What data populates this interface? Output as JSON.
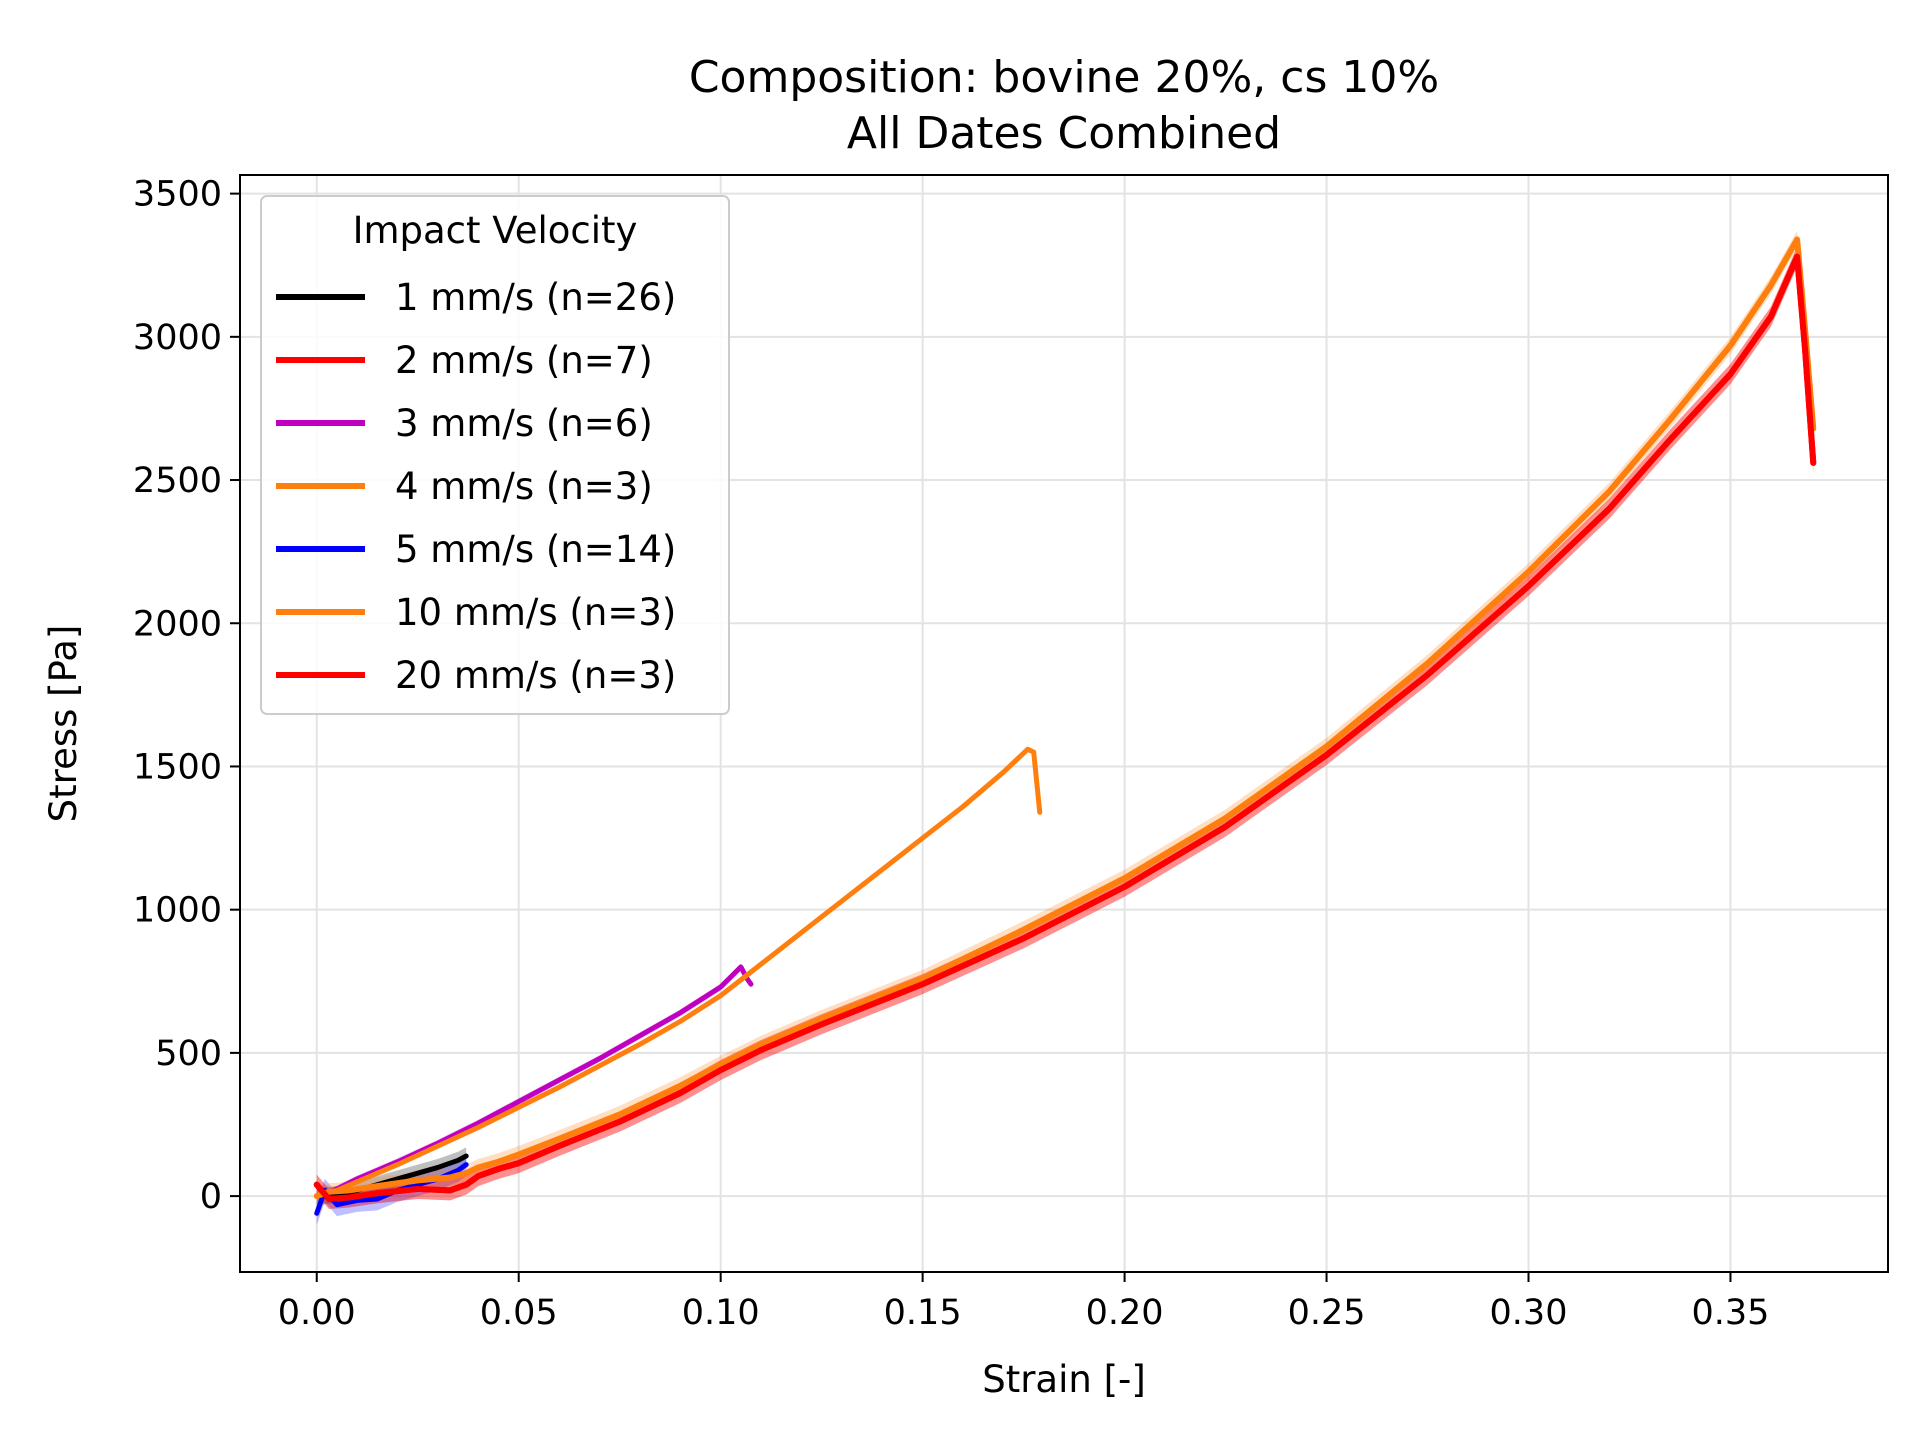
{
  "chart_data": {
    "type": "line",
    "title": "Composition: bovine 20%, cs 10%",
    "subtitle": "All Dates Combined",
    "xlabel": "Strain [-]",
    "ylabel": "Stress [Pa]",
    "xlim": [
      -0.019,
      0.389
    ],
    "ylim": [
      -265,
      3565
    ],
    "xticks": [
      0.0,
      0.05,
      0.1,
      0.15,
      0.2,
      0.25,
      0.3,
      0.35
    ],
    "xtick_labels": [
      "0.00",
      "0.05",
      "0.10",
      "0.15",
      "0.20",
      "0.25",
      "0.30",
      "0.35"
    ],
    "yticks": [
      0,
      500,
      1000,
      1500,
      2000,
      2500,
      3000,
      3500
    ],
    "ytick_labels": [
      "0",
      "500",
      "1000",
      "1500",
      "2000",
      "2500",
      "3000",
      "3500"
    ],
    "grid": true,
    "legend": {
      "title": "Impact Velocity",
      "placement": "upper-left"
    },
    "series": [
      {
        "name": "1 mm/s (n=26)",
        "color": "#000000",
        "band": 30,
        "x": [
          0.0,
          0.005,
          0.01,
          0.015,
          0.02,
          0.025,
          0.03,
          0.035,
          0.037
        ],
        "y": [
          0,
          5,
          20,
          40,
          60,
          80,
          100,
          125,
          140
        ]
      },
      {
        "name": "2 mm/s (n=7)",
        "color": "#ff0000",
        "band": 35,
        "x": [
          0.0,
          0.003,
          0.008,
          0.015,
          0.025,
          0.033,
          0.037,
          0.04,
          0.045,
          0.05,
          0.06,
          0.075,
          0.09,
          0.1,
          0.11,
          0.125,
          0.15,
          0.175,
          0.2,
          0.225,
          0.25,
          0.275,
          0.3,
          0.32,
          0.335,
          0.35,
          0.36,
          0.3665,
          0.3685,
          0.3705
        ],
        "y": [
          40,
          -10,
          -5,
          10,
          25,
          20,
          40,
          70,
          95,
          115,
          175,
          260,
          360,
          440,
          510,
          600,
          740,
          900,
          1080,
          1290,
          1540,
          1820,
          2130,
          2400,
          2640,
          2870,
          3070,
          3280,
          2950,
          2560
        ]
      },
      {
        "name": "3 mm/s (n=6)",
        "color": "#c000c0",
        "band": 12,
        "x": [
          0.0,
          0.005,
          0.01,
          0.02,
          0.03,
          0.04,
          0.05,
          0.06,
          0.07,
          0.08,
          0.09,
          0.1,
          0.105,
          0.1065,
          0.1075
        ],
        "y": [
          0,
          25,
          60,
          120,
          185,
          255,
          330,
          405,
          480,
          560,
          640,
          730,
          800,
          760,
          740
        ]
      },
      {
        "name": "4 mm/s (n=3)",
        "color": "#ff7f0e",
        "band": 10,
        "x": [
          0.0,
          0.005,
          0.01,
          0.02,
          0.03,
          0.04,
          0.05,
          0.06,
          0.07,
          0.08,
          0.09,
          0.1,
          0.11,
          0.12,
          0.13,
          0.14,
          0.15,
          0.16,
          0.17,
          0.176,
          0.1775,
          0.179
        ],
        "y": [
          0,
          20,
          50,
          110,
          175,
          240,
          310,
          380,
          455,
          530,
          610,
          700,
          810,
          920,
          1030,
          1140,
          1250,
          1360,
          1480,
          1560,
          1550,
          1340
        ]
      },
      {
        "name": "5 mm/s (n=14)",
        "color": "#0000ff",
        "band": 40,
        "x": [
          0.0,
          0.002,
          0.005,
          0.01,
          0.015,
          0.02,
          0.025,
          0.03,
          0.035,
          0.037
        ],
        "y": [
          -60,
          20,
          -30,
          -15,
          -10,
          20,
          40,
          60,
          90,
          110
        ]
      },
      {
        "name": "10 mm/s (n=3)",
        "color": "#ff7f0e",
        "band": 30,
        "x": [
          0.0,
          0.003,
          0.008,
          0.015,
          0.025,
          0.033,
          0.037,
          0.04,
          0.045,
          0.05,
          0.06,
          0.075,
          0.09,
          0.1,
          0.11,
          0.125,
          0.15,
          0.175,
          0.2,
          0.225,
          0.25,
          0.275,
          0.3,
          0.32,
          0.335,
          0.35,
          0.36,
          0.3665,
          0.3685,
          0.3705
        ],
        "y": [
          0,
          15,
          20,
          35,
          55,
          65,
          80,
          100,
          120,
          145,
          200,
          285,
          385,
          460,
          530,
          620,
          760,
          930,
          1110,
          1320,
          1570,
          1860,
          2180,
          2460,
          2710,
          2970,
          3180,
          3340,
          3020,
          2680
        ]
      },
      {
        "name": "20 mm/s (n=3)",
        "color": "#ff0000",
        "band": 35,
        "x": [
          0.0,
          0.003,
          0.008,
          0.015,
          0.025,
          0.033,
          0.037,
          0.04,
          0.045,
          0.05,
          0.06,
          0.075,
          0.09,
          0.1,
          0.11,
          0.125,
          0.15,
          0.175,
          0.2,
          0.225,
          0.25,
          0.275,
          0.3,
          0.32,
          0.335,
          0.35,
          0.36,
          0.3665,
          0.3685,
          0.3705
        ],
        "y": [
          40,
          -10,
          -5,
          10,
          25,
          20,
          40,
          70,
          95,
          115,
          175,
          260,
          360,
          440,
          510,
          600,
          740,
          900,
          1080,
          1290,
          1540,
          1820,
          2130,
          2400,
          2640,
          2870,
          3070,
          3280,
          2950,
          2560
        ]
      }
    ]
  }
}
